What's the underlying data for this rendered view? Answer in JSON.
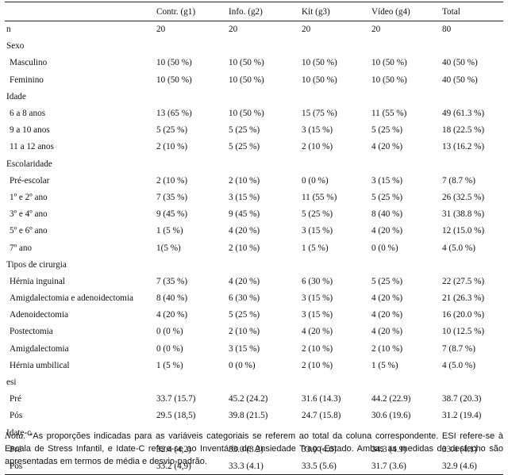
{
  "table": {
    "headers": [
      "",
      "Contr. (g1)",
      "Info. (g2)",
      "Kit (g3)",
      "Vídeo (g4)",
      "Total"
    ],
    "rows": [
      {
        "label": "n",
        "values": [
          "20",
          "20",
          "20",
          "20",
          "80"
        ]
      },
      {
        "label": "Sexo",
        "values": [
          "",
          "",
          "",
          "",
          ""
        ]
      },
      {
        "label": "Masculino",
        "values": [
          "10 (50 %)",
          "10 (50 %)",
          "10 (50 %)",
          "10 (50 %)",
          "40 (50 %)"
        ]
      },
      {
        "label": "Feminino",
        "values": [
          "10 (50 %)",
          "10 (50 %)",
          "10 (50 %)",
          "10 (50 %)",
          "40 (50 %)"
        ]
      },
      {
        "label": "Idade",
        "values": [
          "",
          "",
          "",
          "",
          ""
        ]
      },
      {
        "label": "6 a 8 anos",
        "values": [
          "13 (65 %)",
          "10 (50 %)",
          "15 (75 %)",
          "11 (55 %)",
          "49 (61.3 %)"
        ]
      },
      {
        "label": "9 a 10 anos",
        "values": [
          "5 (25 %)",
          "5 (25 %)",
          "3 (15 %)",
          "5 (25 %)",
          "18 (22.5 %)"
        ]
      },
      {
        "label": "11 a 12 anos",
        "values": [
          "2 (10 %)",
          "5 (25 %)",
          "2 (10 %)",
          "4 (20 %)",
          "13 (16.2 %)"
        ]
      },
      {
        "label": "Escolaridade",
        "values": [
          "",
          "",
          "",
          "",
          ""
        ]
      },
      {
        "label": "Pré-escolar",
        "values": [
          "2 (10 %)",
          "2 (10 %)",
          "0 (0 %)",
          "3 (15 %)",
          "7 (8.7 %)"
        ]
      },
      {
        "label": "1º e 2º ano",
        "values": [
          "7 (35 %)",
          "3 (15 %)",
          "11 (55 %)",
          "5 (25 %)",
          "26 (32.5 %)"
        ]
      },
      {
        "label": "3º e 4º ano",
        "values": [
          "9 (45 %)",
          "9 (45 %)",
          "5 (25 %)",
          "8 (40 %)",
          "31 (38.8 %)"
        ]
      },
      {
        "label": "5º e 6º ano",
        "values": [
          "1 (5 %)",
          "4 (20 %)",
          "3 (15 %)",
          "4 (20 %)",
          "12 (15.0 %)"
        ]
      },
      {
        "label": "7º ano",
        "values": [
          "1(5 %)",
          "2 (10 %)",
          "1 (5 %)",
          "0 (0 %)",
          "4 (5.0 %)"
        ]
      },
      {
        "label": "Tipos de cirurgia",
        "values": [
          "",
          "",
          "",
          "",
          ""
        ]
      },
      {
        "label": "Hérnia inguinal",
        "values": [
          "7 (35 %)",
          "4 (20 %)",
          "6 (30 %)",
          "5 (25 %)",
          "22 (27.5 %)"
        ]
      },
      {
        "label": "Amigdalectomia e adenoidectomia",
        "values": [
          "8 (40 %)",
          "6 (30 %)",
          "3 (15 %)",
          "4 (20 %)",
          "21 (26.3 %)"
        ]
      },
      {
        "label": "Adenoidectomia",
        "values": [
          "4 (20 %)",
          "5 (25 %)",
          "3 (15 %)",
          "4 (20 %)",
          "16 (20.0 %)"
        ]
      },
      {
        "label": "Postectomia",
        "values": [
          "0 (0 %)",
          "2 (10 %)",
          "4 (20 %)",
          "4 (20 %)",
          "10 (12.5 %)"
        ]
      },
      {
        "label": "Amigdalectomia",
        "values": [
          "0 (0 %)",
          "3 (15 %)",
          "2 (10 %)",
          "2 (10 %)",
          "7 (8.7 %)"
        ]
      },
      {
        "label": "Hérnia umbilical",
        "values": [
          "1 (5 %)",
          "0 (0 %)",
          "2 (10 %)",
          "1 (5 %)",
          "4 (5.0 %)"
        ]
      },
      {
        "label": "esi",
        "values": [
          "",
          "",
          "",
          "",
          ""
        ]
      },
      {
        "label": "Pré",
        "values": [
          "33.7 (15.7)",
          "45.2 (24.2)",
          "31.6 (14.3)",
          "44.2 (22.9)",
          "38.7 (20.3)"
        ]
      },
      {
        "label": "Pós",
        "values": [
          "29.5 (18,5)",
          "39.8 (21.5)",
          "24.7 (15.8)",
          "30.6 (19.6)",
          "31.2 (19.4)"
        ]
      },
      {
        "label": "Idate-c",
        "values": [
          "",
          "",
          "",
          "",
          ""
        ]
      },
      {
        "label": "Pré",
        "values": [
          "32.4 (4,2)",
          "33.0 (3.2)",
          "33.9 (4.0)",
          "34.3 (4.9)",
          "33.4 (4.1)"
        ]
      },
      {
        "label": "Pós",
        "values": [
          "33.2 (4,9)",
          "33.3 (4.1)",
          "33.5 (5.6)",
          "31.7 (3.6)",
          "32.9 (4.6)"
        ]
      }
    ]
  },
  "note": {
    "label": "Nota.",
    "text": " *As proporções indicadas para as variáveis categoriais se referem ao total da coluna correspondente. ESI refere-se à Escala de Stress Infantil, e Idate-C refere-se ao Inventário de Ansiedade Traço-Estado. Ambas as medidas de desfecho são apresentadas em termos de média e desvio-padrão."
  }
}
